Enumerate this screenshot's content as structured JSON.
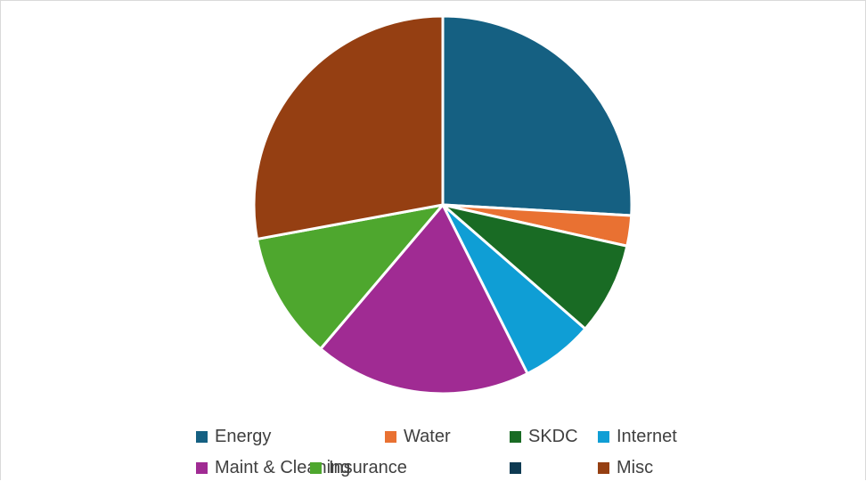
{
  "chart_data": {
    "type": "pie",
    "title": "",
    "slices": [
      {
        "label": "Energy",
        "value": 25.9,
        "color": "#156082"
      },
      {
        "label": "Water",
        "value": 2.6,
        "color": "#E97132"
      },
      {
        "label": "SKDC",
        "value": 7.9,
        "color": "#196B24"
      },
      {
        "label": "Internet",
        "value": 6.2,
        "color": "#0F9ED5"
      },
      {
        "label": "Maint & Cleaning",
        "value": 18.6,
        "color": "#A02B93"
      },
      {
        "label": "Insurance",
        "value": 10.9,
        "color": "#4EA72E"
      },
      {
        "label": "",
        "value": 0,
        "color": "#0E3A52"
      },
      {
        "label": "Misc",
        "value": 27.9,
        "color": "#953F12"
      }
    ],
    "legend_position": "bottom",
    "start_angle_deg": 0,
    "direction": "clockwise"
  }
}
